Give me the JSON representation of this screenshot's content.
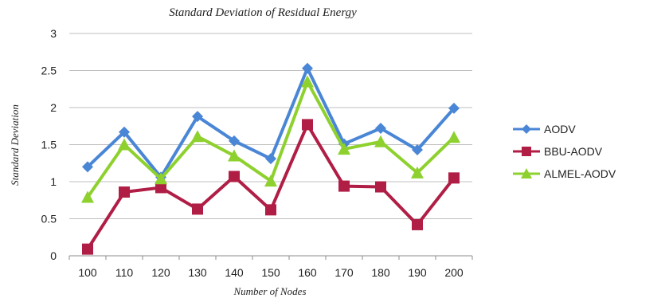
{
  "chart_data": {
    "type": "line",
    "title": "Standard Deviation of Residual Energy",
    "xlabel": "Number of Nodes",
    "ylabel": "Standard Deviation",
    "categories": [
      "100",
      "110",
      "120",
      "130",
      "140",
      "150",
      "160",
      "170",
      "180",
      "190",
      "200"
    ],
    "ylim": [
      0,
      3
    ],
    "yticks": [
      "0",
      "0.5",
      "1",
      "1.5",
      "2",
      "2.5",
      "3"
    ],
    "grid": "horizontal",
    "legend_position": "right",
    "series": [
      {
        "name": "AODV",
        "color": "#4A86D6",
        "marker": "diamond",
        "values": [
          1.2,
          1.67,
          1.06,
          1.88,
          1.55,
          1.31,
          2.53,
          1.51,
          1.72,
          1.43,
          1.99
        ]
      },
      {
        "name": "BBU-AODV",
        "color": "#B01E45",
        "marker": "square",
        "values": [
          0.09,
          0.86,
          0.92,
          0.63,
          1.07,
          0.62,
          1.77,
          0.94,
          0.93,
          0.42,
          1.05
        ]
      },
      {
        "name": "ALMEL-AODV",
        "color": "#8ED12E",
        "marker": "triangle",
        "values": [
          0.79,
          1.5,
          1.04,
          1.61,
          1.35,
          1.01,
          2.35,
          1.44,
          1.54,
          1.12,
          1.6
        ]
      }
    ]
  }
}
